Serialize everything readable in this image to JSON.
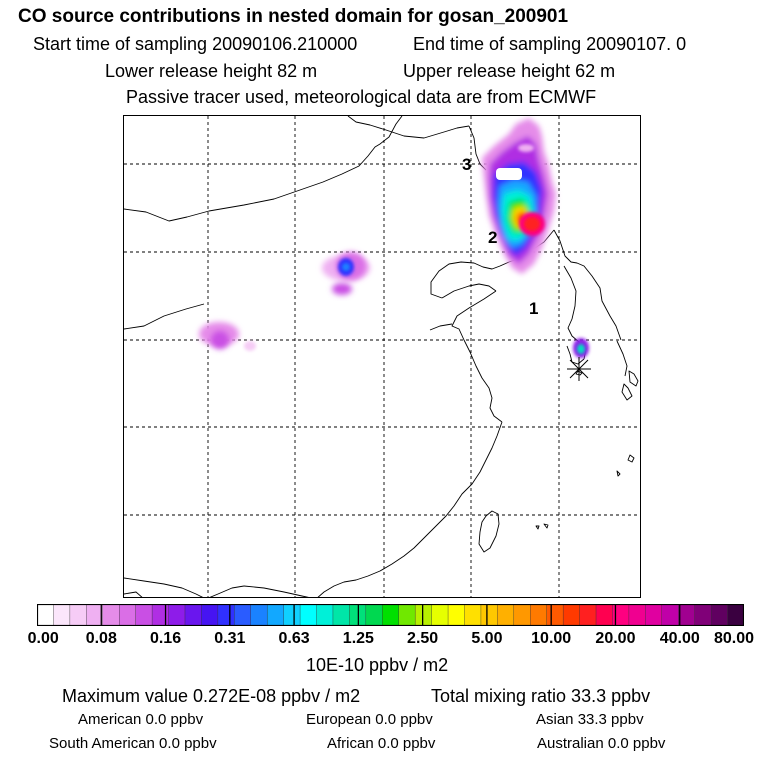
{
  "header": {
    "title": "CO  source contributions in nested domain for gosan_200901",
    "start_label": "Start time of sampling 20090106.210000",
    "end_label": "End time of sampling 20090107.     0",
    "lower_label": "Lower release height   82 m",
    "upper_label": "Upper release height   62 m",
    "tracer_label": "Passive tracer used, meteorological data are from ECMWF"
  },
  "map": {
    "markers": [
      {
        "label": "3"
      },
      {
        "label": "2"
      },
      {
        "label": "1"
      }
    ],
    "receptor_symbol": "asterisk-icon"
  },
  "colorbar": {
    "colors": [
      "#ffffff",
      "#fbe6fb",
      "#f6ccf6",
      "#efb0f2",
      "#e58ce9",
      "#da6ee6",
      "#c94fe4",
      "#b02ee3",
      "#8e1ce9",
      "#6a16ee",
      "#4614f2",
      "#3030ff",
      "#2a5cff",
      "#1a82ff",
      "#12a8ff",
      "#10d0ff",
      "#00ffff",
      "#00f0d8",
      "#00e6a8",
      "#00e07a",
      "#00d850",
      "#00e000",
      "#70e800",
      "#b8f000",
      "#e6ff00",
      "#ffff00",
      "#ffe000",
      "#ffc800",
      "#ffb000",
      "#ff9800",
      "#ff7a00",
      "#ff5a00",
      "#ff3a00",
      "#ff2020",
      "#ff0050",
      "#ff0080",
      "#f00090",
      "#e000a0",
      "#c000a8",
      "#a00090",
      "#800078",
      "#600060",
      "#3a0040"
    ],
    "tick_labels": [
      "0.00",
      "0.08",
      "0.16",
      "0.31",
      "0.63",
      "1.25",
      "2.50",
      "5.00",
      "10.00",
      "20.00",
      "40.00",
      "80.00"
    ],
    "unit": "10E-10 ppbv / m2"
  },
  "footer": {
    "max_label": "Maximum value  0.272E-08 ppbv / m2",
    "total_label": "Total mixing ratio       33.3 ppbv",
    "american": "American        0.0 ppbv",
    "european": "European       0.0 ppbv",
    "asian": "Asian      33.3 ppbv",
    "south_american": "South American        0.0 ppbv",
    "african": "African       0.0 ppbv",
    "australian": "Australian        0.0 ppbv"
  }
}
